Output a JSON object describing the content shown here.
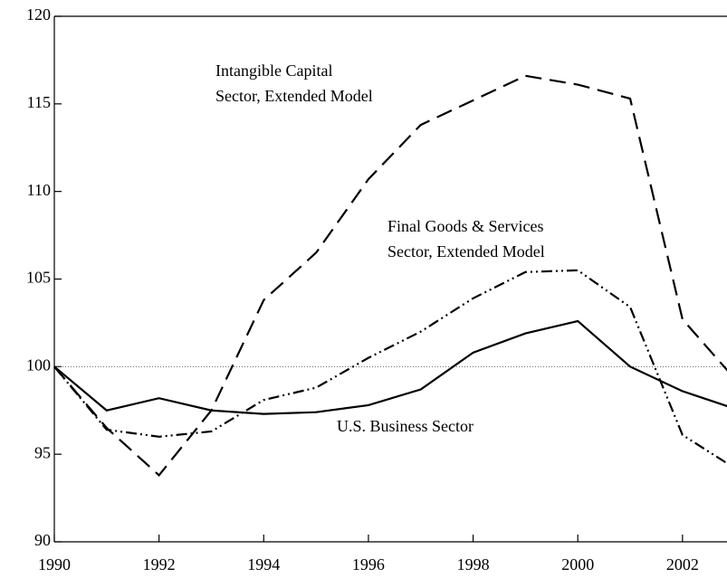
{
  "chart_data": {
    "type": "line",
    "x": [
      1990,
      1991,
      1992,
      1993,
      1994,
      1995,
      1996,
      1997,
      1998,
      1999,
      2000,
      2001,
      2002,
      2003
    ],
    "series": [
      {
        "name": "Intangible Capital Sector, Extended Model",
        "color": "#000000",
        "dash": "18,9",
        "values": [
          100,
          96.5,
          93.8,
          97.5,
          103.8,
          106.5,
          110.7,
          113.8,
          115.2,
          116.6,
          116.1,
          115.3,
          102.7,
          99.3
        ]
      },
      {
        "name": "Final Goods & Services Sector, Extended Model",
        "color": "#000000",
        "dash": "12,4,2,4,2,4",
        "values": [
          100,
          96.4,
          96.0,
          96.3,
          98.1,
          98.8,
          100.5,
          102.0,
          103.9,
          105.4,
          105.5,
          103.4,
          96.1,
          94.2
        ]
      },
      {
        "name": "U.S. Business Sector",
        "color": "#000000",
        "dash": "none",
        "values": [
          100,
          97.5,
          98.2,
          97.5,
          97.3,
          97.4,
          97.8,
          98.7,
          100.8,
          101.9,
          102.6,
          100.0,
          98.6,
          97.6
        ]
      }
    ],
    "annotations": [
      {
        "lines": [
          "Intangible Capital",
          "Sector, Extended Model"
        ]
      },
      {
        "lines": [
          "Final Goods & Services",
          "Sector, Extended Model"
        ]
      },
      {
        "lines": [
          "U.S. Business Sector"
        ]
      }
    ],
    "reference_line": 100,
    "xlim": [
      1990,
      2002.85
    ],
    "xticks": [
      1990,
      1992,
      1994,
      1996,
      1998,
      2000,
      2002
    ],
    "ylim": [
      90,
      120
    ],
    "yticks": [
      90,
      95,
      100,
      105,
      110,
      115,
      120
    ]
  }
}
